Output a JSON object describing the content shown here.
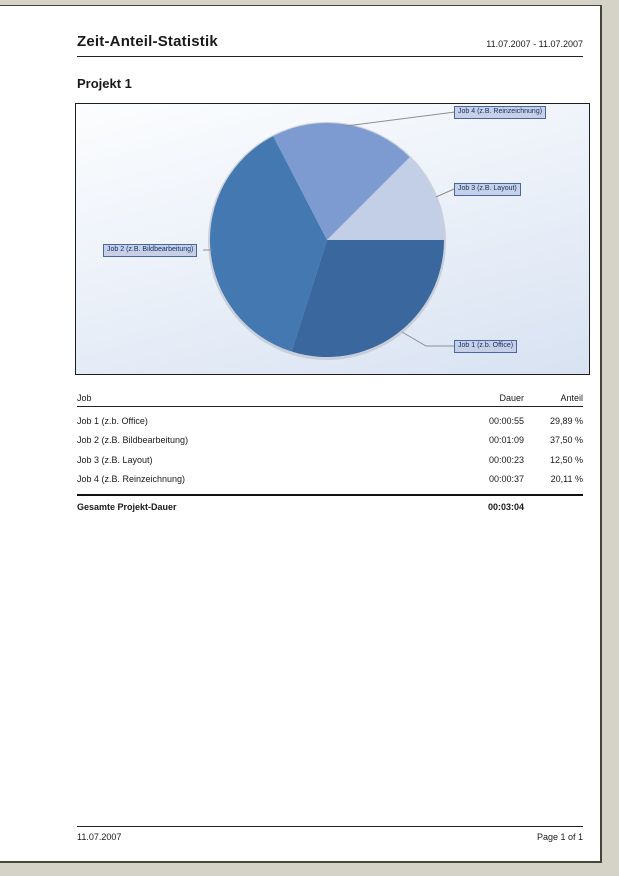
{
  "header": {
    "title": "Zeit-Anteil-Statistik",
    "date_range": "11.07.2007 - 11.07.2007"
  },
  "section_title": "Projekt 1",
  "chart_data": {
    "type": "pie",
    "title": "Projekt 1",
    "legend_position": "callout-labels",
    "start_angle_deg": 0,
    "direction": "clockwise-from-east",
    "slices": [
      {
        "label": "Job 1 (z.b. Office)",
        "percent": 29.89,
        "dauer": "00:00:55",
        "color": "#39679e"
      },
      {
        "label": "Job 2 (z.B. Bildbearbeitung)",
        "percent": 37.5,
        "dauer": "00:01:09",
        "color": "#4478b1"
      },
      {
        "label": "Job 4 (z.B. Reinzeichnung)",
        "percent": 20.11,
        "dauer": "00:00:37",
        "color": "#7d9bd1"
      },
      {
        "label": "Job 3 (z.B. Layout)",
        "percent": 12.5,
        "dauer": "00:00:23",
        "color": "#c3cfe6"
      }
    ]
  },
  "table": {
    "columns": {
      "job": "Job",
      "dauer": "Dauer",
      "anteil": "Anteil"
    },
    "rows": [
      {
        "job": "Job 1 (z.b. Office)",
        "dauer": "00:00:55",
        "anteil": "29,89 %"
      },
      {
        "job": "Job 2 (z.B. Bildbearbeitung)",
        "dauer": "00:01:09",
        "anteil": "37,50 %"
      },
      {
        "job": "Job 3 (z.B. Layout)",
        "dauer": "00:00:23",
        "anteil": "12,50 %"
      },
      {
        "job": "Job 4 (z.B. Reinzeichnung)",
        "dauer": "00:00:37",
        "anteil": "20,11 %"
      }
    ],
    "total": {
      "label": "Gesamte Projekt-Dauer",
      "dauer": "00:03:04"
    }
  },
  "footer": {
    "date": "11.07.2007",
    "page_label": "Page 1 of 1"
  }
}
